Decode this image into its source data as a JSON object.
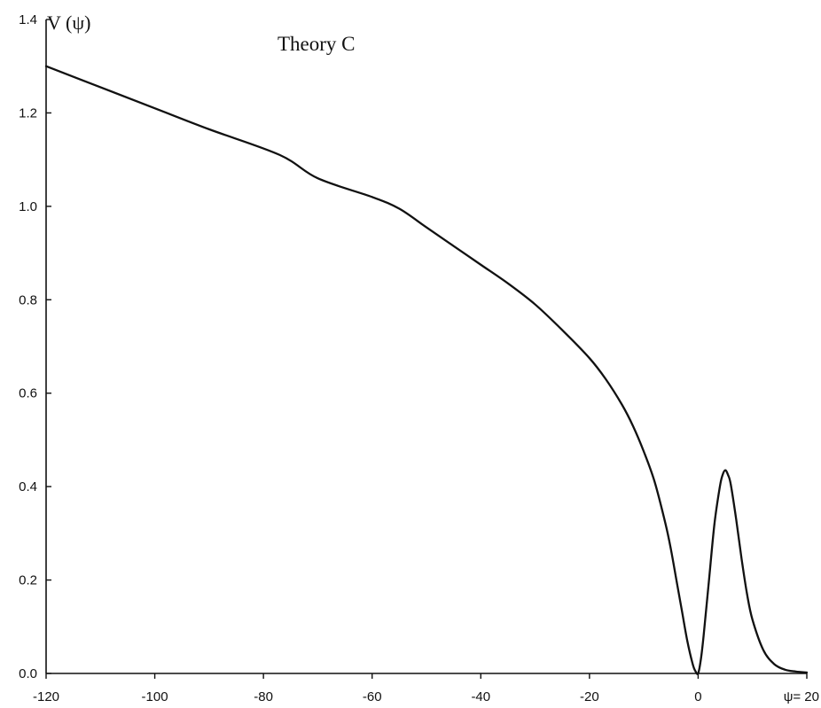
{
  "chart_data": {
    "type": "line",
    "title": "Theory  C",
    "ylabel": "V (ψ)",
    "xlabel": "",
    "xlim": [
      -120,
      20
    ],
    "ylim": [
      0,
      1.4
    ],
    "x_ticks": [
      -120,
      -100,
      -80,
      -60,
      -40,
      -20,
      0,
      20
    ],
    "x_tick_labels": [
      "-120",
      "-100",
      "-80",
      "-60",
      "-40",
      "-20",
      "0",
      "ψ= 20"
    ],
    "y_ticks": [
      0,
      0.2,
      0.4,
      0.6,
      0.8,
      1.0,
      1.2,
      1.4
    ],
    "y_tick_labels": [
      "0.0",
      "0.2",
      "0.4",
      "0.6",
      "0.8",
      "1.0",
      "1.2",
      "1.4"
    ],
    "grid": false,
    "series": [
      {
        "x": [
          -120,
          -110,
          -100,
          -90,
          -77,
          -70,
          -60,
          -55,
          -50,
          -45,
          -40,
          -35,
          -30,
          -25,
          -20,
          -17,
          -14,
          -12,
          -10,
          -8,
          -6,
          -5,
          -4,
          -3,
          -2,
          -1,
          -0.5,
          0,
          0.5,
          1,
          2,
          3,
          4,
          4.5,
          5,
          5.5,
          6,
          7,
          8,
          9,
          10,
          12,
          14,
          16,
          18,
          20
        ],
        "y": [
          1.3,
          1.255,
          1.21,
          1.165,
          1.11,
          1.06,
          1.02,
          0.995,
          0.955,
          0.915,
          0.875,
          0.835,
          0.79,
          0.735,
          0.675,
          0.63,
          0.575,
          0.53,
          0.475,
          0.41,
          0.32,
          0.265,
          0.2,
          0.135,
          0.07,
          0.02,
          0.005,
          0.0,
          0.03,
          0.08,
          0.2,
          0.32,
          0.4,
          0.425,
          0.435,
          0.425,
          0.405,
          0.33,
          0.245,
          0.17,
          0.115,
          0.05,
          0.02,
          0.008,
          0.004,
          0.002
        ]
      }
    ]
  }
}
